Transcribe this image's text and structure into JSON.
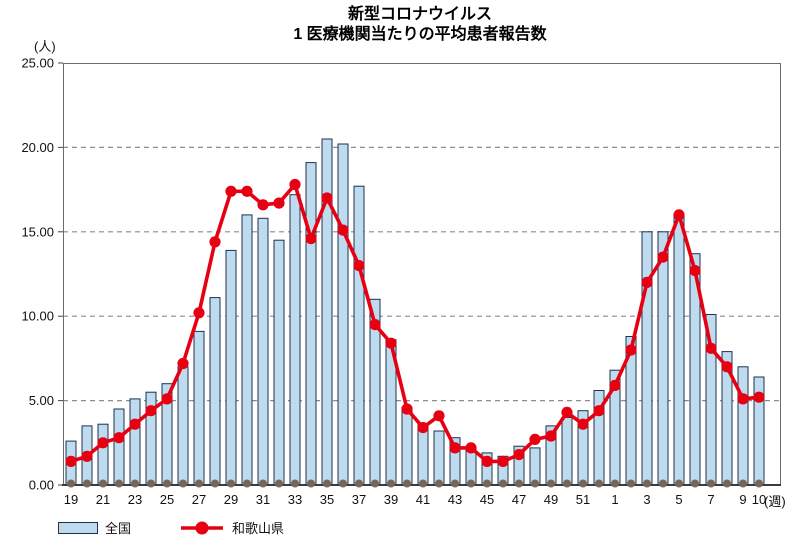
{
  "title": {
    "line1": "新型コロナウイルス",
    "line2": "1 医療機関当たりの平均患者報告数"
  },
  "chart_data": {
    "type": "bar",
    "title": "新型コロナウイルス 1医療機関当たりの平均患者報告数",
    "ylabel": "(人)",
    "xlabel": "(週)",
    "ylim": [
      0,
      25
    ],
    "y_ticks": [
      "0.00",
      "5.00",
      "10.00",
      "15.00",
      "20.00",
      "25.00"
    ],
    "grid": "horizontal-dashed",
    "legend_position": "bottom-left",
    "categories": [
      "19",
      "20",
      "21",
      "22",
      "23",
      "24",
      "25",
      "26",
      "27",
      "28",
      "29",
      "30",
      "31",
      "32",
      "33",
      "34",
      "35",
      "36",
      "37",
      "38",
      "39",
      "40",
      "41",
      "42",
      "43",
      "44",
      "45",
      "46",
      "47",
      "48",
      "49",
      "50",
      "51",
      "52",
      "1",
      "2",
      "3",
      "4",
      "5",
      "6",
      "7",
      "8",
      "9",
      "10"
    ],
    "x_tick_labels_shown": [
      "19",
      "21",
      "23",
      "25",
      "27",
      "29",
      "31",
      "33",
      "35",
      "37",
      "39",
      "41",
      "43",
      "45",
      "47",
      "49",
      "51",
      "1",
      "3",
      "5",
      "7",
      "9",
      "10"
    ],
    "series": [
      {
        "name": "全国",
        "type": "bar",
        "color": "#BFDBEE",
        "border_color": "#1F3050",
        "values": [
          2.6,
          3.5,
          3.6,
          4.5,
          5.1,
          5.5,
          6.0,
          7.0,
          9.1,
          11.1,
          13.9,
          16.0,
          15.8,
          14.5,
          17.2,
          19.1,
          20.5,
          20.2,
          17.7,
          11.0,
          8.6,
          4.6,
          3.6,
          3.2,
          2.8,
          2.1,
          1.9,
          1.7,
          2.3,
          2.2,
          3.5,
          4.0,
          4.4,
          5.6,
          6.8,
          8.8,
          15.0,
          15.0,
          16.0,
          13.7,
          10.1,
          7.9,
          7.0,
          6.4
        ]
      },
      {
        "name": "和歌山県",
        "type": "line",
        "color": "#E60012",
        "values": [
          1.4,
          1.7,
          2.5,
          2.8,
          3.6,
          4.4,
          5.1,
          7.2,
          10.2,
          14.4,
          17.4,
          17.4,
          16.6,
          16.7,
          17.8,
          14.6,
          17.0,
          15.1,
          13.0,
          9.5,
          8.4,
          4.5,
          3.4,
          4.1,
          2.2,
          2.2,
          1.4,
          1.4,
          1.8,
          2.7,
          2.9,
          4.3,
          3.6,
          4.4,
          5.9,
          8.0,
          12.0,
          13.5,
          16.0,
          12.7,
          8.1,
          7.0,
          5.1,
          5.2
        ]
      }
    ],
    "baseline_dot_color": "#75675A"
  }
}
